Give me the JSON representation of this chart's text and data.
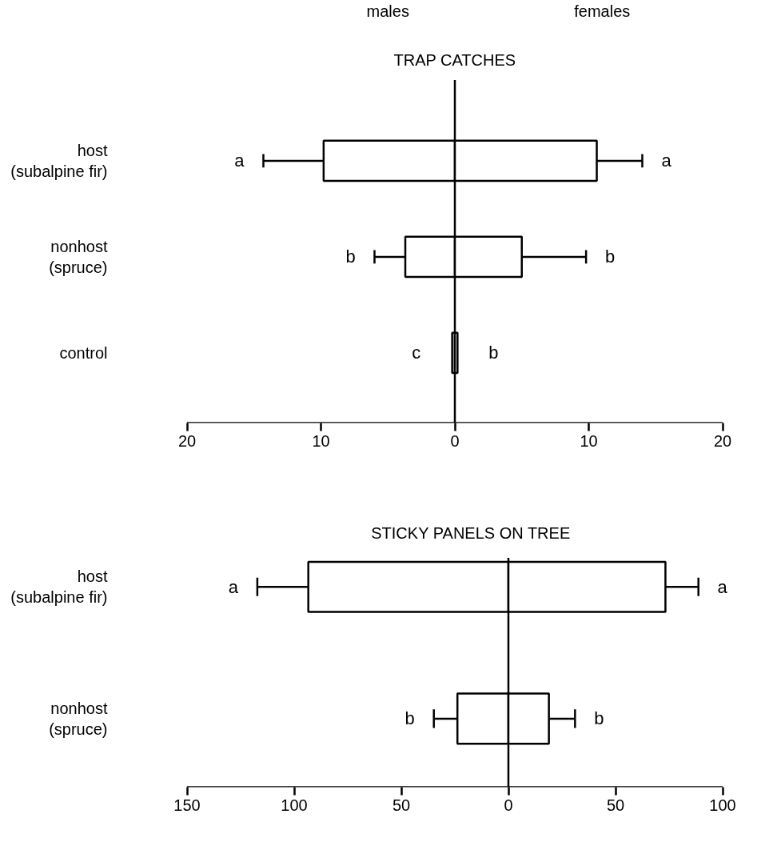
{
  "chart_data": [
    {
      "type": "bar",
      "orientation": "horizontal",
      "stacked": true,
      "title": "TRAP CATCHES",
      "categories": [
        "host\n(subalpine fir)",
        "nonhost\n(spruce)",
        "control"
      ],
      "series": [
        {
          "color": "#ffffff",
          "values": [
            -9.8,
            -3.7,
            -0.2
          ],
          "errors": [
            [
              -14.3,
              -9.8
            ],
            [
              -6.0,
              -3.7
            ],
            null
          ]
        },
        {
          "color": "#ffffff",
          "values": [
            10.6,
            5.0,
            0.2
          ],
          "errors": [
            [
              10.6,
              14.0
            ],
            [
              5.0,
              9.8
            ],
            null
          ]
        }
      ],
      "xlim": [
        -20,
        20
      ],
      "xticks": [
        {
          "value": -20,
          "label": "20"
        },
        {
          "value": -10,
          "label": "10"
        },
        0,
        10,
        20
      ],
      "ref_lines": [
        {
          "axis": "x",
          "value": 0
        }
      ],
      "annotations": [
        "males",
        "females",
        "a",
        "a",
        "b",
        "b",
        "c",
        "b"
      ],
      "grid": false
    },
    {
      "type": "bar",
      "orientation": "horizontal",
      "stacked": true,
      "title": "STICKY PANELS ON TREE",
      "categories": [
        "host\n(subalpine fir)",
        "nonhost\n(spruce)"
      ],
      "series": [
        {
          "color": "#ffffff",
          "values": [
            -93.4,
            -23.8
          ],
          "errors": [
            [
              -117.2,
              -93.4
            ],
            [
              -34.8,
              -23.8
            ]
          ]
        },
        {
          "color": "#ffffff",
          "values": [
            73.3,
            18.9
          ],
          "errors": [
            [
              73.3,
              88.7
            ],
            [
              18.9,
              31.1
            ]
          ]
        }
      ],
      "xlim": [
        -150,
        100
      ],
      "xticks": [
        {
          "value": -150,
          "label": "150"
        },
        {
          "value": -100,
          "label": "100"
        },
        {
          "value": -50,
          "label": "50"
        },
        0,
        50,
        100
      ],
      "ref_lines": [
        {
          "axis": "x",
          "value": 0
        }
      ],
      "annotations": [
        "a",
        "a",
        "b",
        "b"
      ],
      "grid": false
    }
  ]
}
